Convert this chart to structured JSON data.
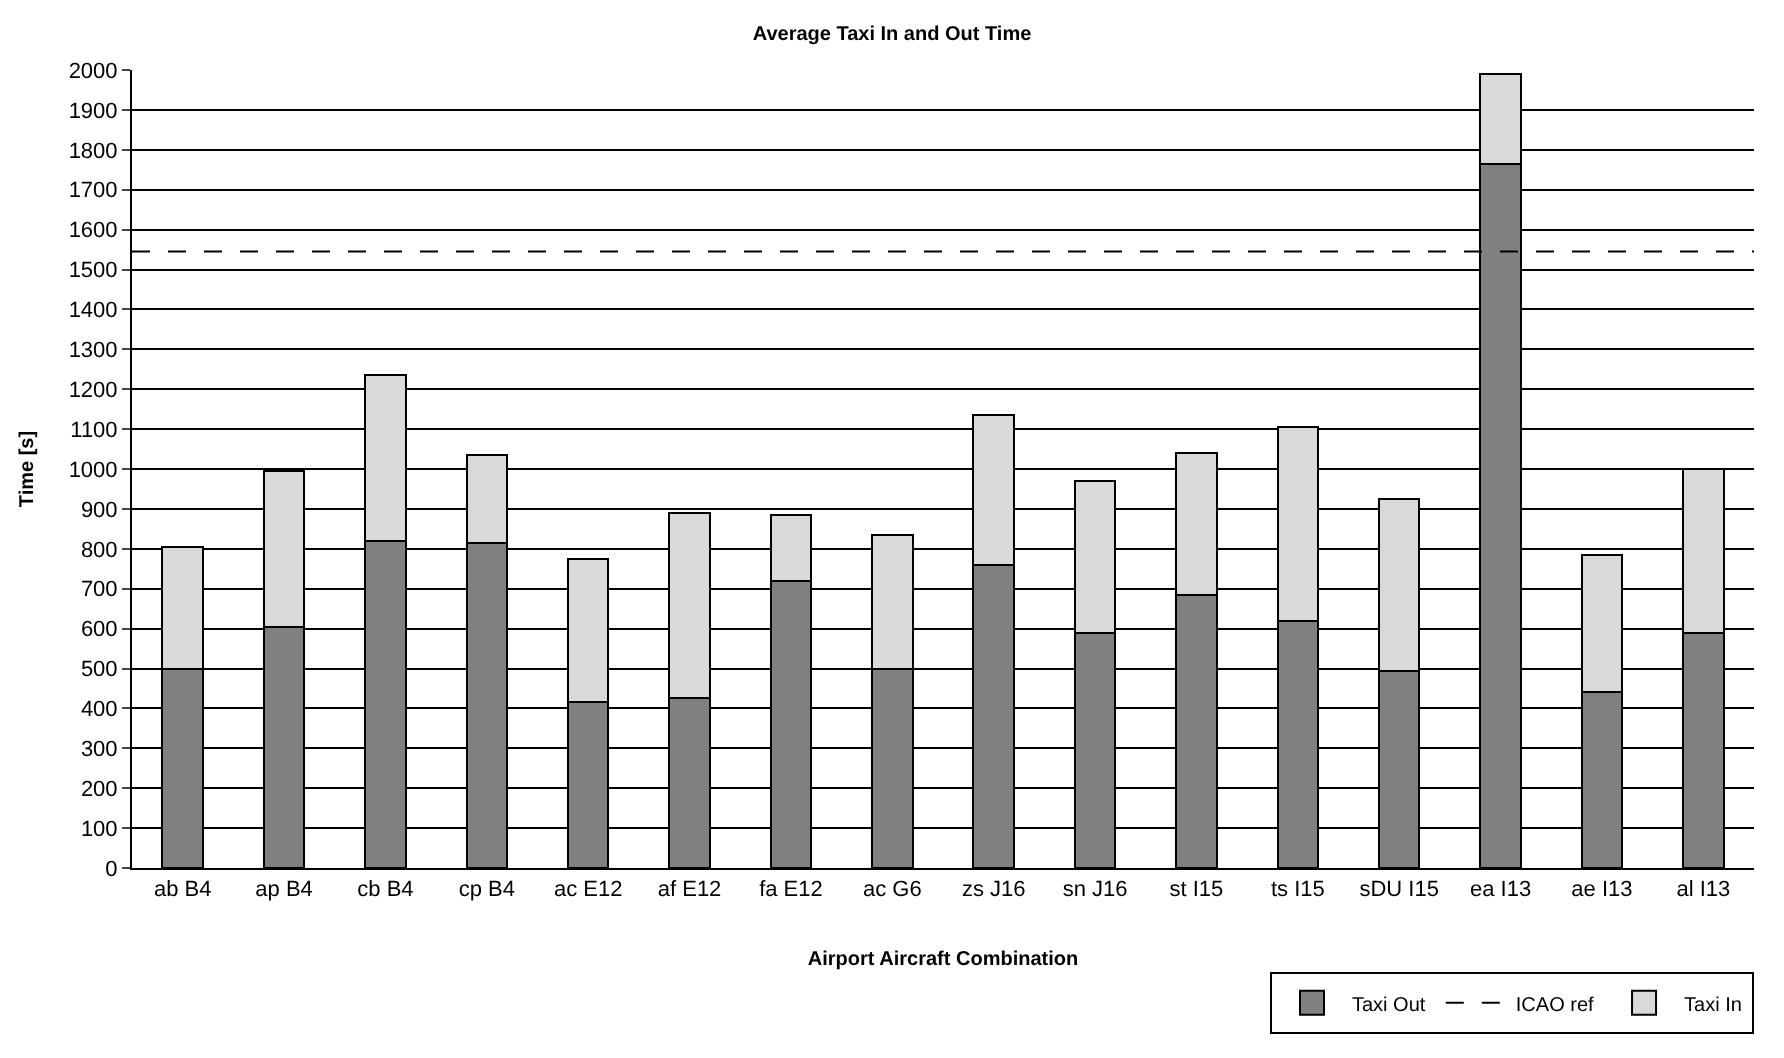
{
  "chart_data": {
    "type": "bar",
    "stacked": true,
    "title": "Average Taxi In and Out Time",
    "xlabel": "Airport Aircraft Combination",
    "ylabel": "Time [s]",
    "categories": [
      "ab B4",
      "ap B4",
      "cb B4",
      "cp B4",
      "ac E12",
      "af E12",
      "fa E12",
      "ac G6",
      "zs J16",
      "sn J16",
      "st I15",
      "ts I15",
      "sDU I15",
      "ea I13",
      "ae I13",
      "al I13"
    ],
    "series": [
      {
        "name": "Taxi Out",
        "color": "#808080",
        "values": [
          500,
          605,
          820,
          815,
          415,
          425,
          720,
          500,
          760,
          590,
          685,
          620,
          495,
          1765,
          440,
          590
        ]
      },
      {
        "name": "Taxi In",
        "color": "#d9d9d9",
        "values": [
          305,
          390,
          415,
          220,
          360,
          465,
          165,
          335,
          375,
          380,
          355,
          485,
          430,
          225,
          345,
          410
        ]
      }
    ],
    "ref_lines": [
      {
        "axis": "y",
        "value": 1545,
        "label": "ICAO ref",
        "color": "#000000",
        "line_style": "dashed"
      }
    ],
    "ylim": [
      0,
      2000
    ],
    "yticks": [
      0,
      100,
      200,
      300,
      400,
      500,
      600,
      700,
      800,
      900,
      1000,
      1100,
      1200,
      1300,
      1400,
      1500,
      1600,
      1700,
      1800,
      1900,
      2000
    ],
    "grid": "y",
    "legend": "bottom right"
  }
}
